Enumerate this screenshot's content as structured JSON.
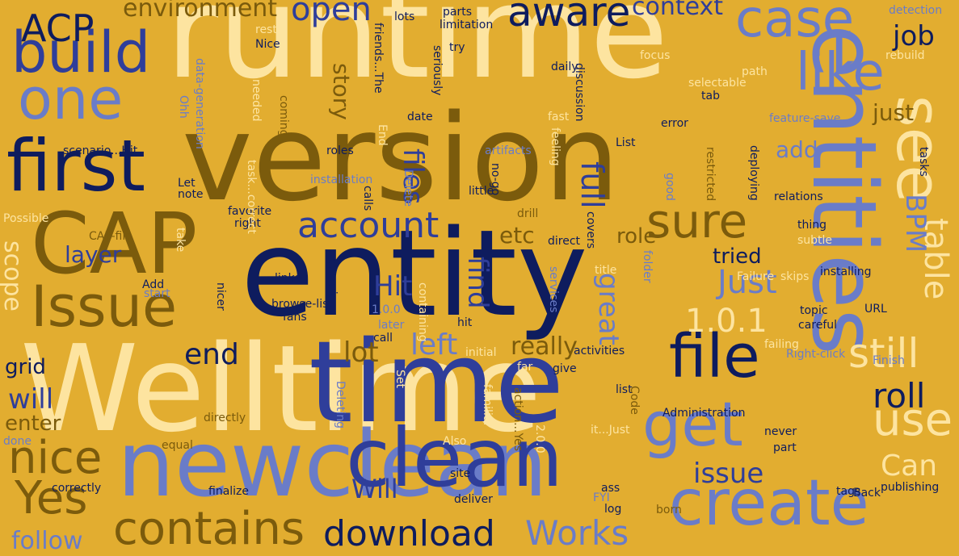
{
  "palette": {
    "background": "#E2AD30",
    "navy": "#0E1C5E",
    "blue": "#2F3E9A",
    "periwinkle": "#6A7CC8",
    "cream": "#FDE4A0",
    "olive": "#7B5B0C"
  },
  "words": [
    {
      "text": "runtime",
      "color": "cream"
    },
    {
      "text": "version",
      "color": "olive"
    },
    {
      "text": "entity",
      "color": "navy"
    },
    {
      "text": "Welltime",
      "color": "cream"
    },
    {
      "text": "time",
      "color": "blue"
    },
    {
      "text": "newclean",
      "color": "periwinkle"
    },
    {
      "text": "clean",
      "color": "blue"
    },
    {
      "text": "entities",
      "color": "periwinkle"
    },
    {
      "text": "CAP",
      "color": "olive"
    },
    {
      "text": "first",
      "color": "navy"
    },
    {
      "text": "build",
      "color": "blue"
    },
    {
      "text": "one",
      "color": "periwinkle"
    },
    {
      "text": "Issue",
      "color": "olive"
    },
    {
      "text": "create",
      "color": "periwinkle"
    },
    {
      "text": "see",
      "color": "cream"
    },
    {
      "text": "case",
      "color": "periwinkle"
    },
    {
      "text": "like",
      "color": "periwinkle"
    },
    {
      "text": "file",
      "color": "navy"
    },
    {
      "text": "get",
      "color": "periwinkle"
    },
    {
      "text": "sure",
      "color": "olive"
    },
    {
      "text": "aware",
      "color": "navy"
    },
    {
      "text": "contains",
      "color": "olive"
    },
    {
      "text": "download",
      "color": "navy"
    },
    {
      "text": "Yes",
      "color": "olive"
    },
    {
      "text": "nice",
      "color": "olive"
    },
    {
      "text": "use",
      "color": "cream"
    },
    {
      "text": "still",
      "color": "cream"
    },
    {
      "text": "account",
      "color": "blue"
    },
    {
      "text": "open",
      "color": "blue"
    },
    {
      "text": "ACP",
      "color": "navy"
    },
    {
      "text": "context",
      "color": "blue"
    },
    {
      "text": "environment",
      "color": "olive"
    },
    {
      "text": "job",
      "color": "navy"
    },
    {
      "text": "story",
      "color": "olive"
    },
    {
      "text": "files",
      "color": "blue"
    },
    {
      "text": "left",
      "color": "periwinkle"
    },
    {
      "text": "lot",
      "color": "olive"
    },
    {
      "text": "really",
      "color": "olive"
    },
    {
      "text": "end",
      "color": "navy"
    },
    {
      "text": "will",
      "color": "blue"
    },
    {
      "text": "grid",
      "color": "navy"
    },
    {
      "text": "enter",
      "color": "olive"
    },
    {
      "text": "follow",
      "color": "periwinkle"
    },
    {
      "text": "Works",
      "color": "periwinkle"
    },
    {
      "text": "Will",
      "color": "blue"
    },
    {
      "text": "issue",
      "color": "blue"
    },
    {
      "text": "Can",
      "color": "cream"
    },
    {
      "text": "roll",
      "color": "navy"
    },
    {
      "text": "table",
      "color": "cream"
    },
    {
      "text": "BPM",
      "color": "periwinkle"
    },
    {
      "text": "full",
      "color": "blue"
    },
    {
      "text": "Just",
      "color": "periwinkle"
    },
    {
      "text": "just",
      "color": "olive"
    },
    {
      "text": "add",
      "color": "periwinkle"
    },
    {
      "text": "etc",
      "color": "olive"
    },
    {
      "text": "find",
      "color": "blue"
    },
    {
      "text": "great",
      "color": "periwinkle"
    },
    {
      "text": "Hit",
      "color": "blue"
    },
    {
      "text": "layer",
      "color": "blue"
    },
    {
      "text": "scope",
      "color": "cream"
    },
    {
      "text": "role",
      "color": "olive"
    },
    {
      "text": "tried",
      "color": "navy"
    },
    {
      "text": "1.0.1",
      "color": "cream"
    },
    {
      "text": "Failure",
      "color": "cream"
    },
    {
      "text": "installing",
      "color": "navy"
    },
    {
      "text": "skips",
      "color": "cream"
    },
    {
      "text": "topic",
      "color": "navy"
    },
    {
      "text": "careful",
      "color": "navy"
    },
    {
      "text": "URL",
      "color": "navy"
    },
    {
      "text": "Right-click",
      "color": "periwinkle"
    },
    {
      "text": "Finish",
      "color": "periwinkle"
    },
    {
      "text": "failing",
      "color": "cream"
    },
    {
      "text": "activities",
      "color": "navy"
    },
    {
      "text": "list",
      "color": "navy"
    },
    {
      "text": "Code",
      "color": "olive"
    },
    {
      "text": "Administration",
      "color": "navy"
    },
    {
      "text": "it...Just",
      "color": "cream"
    },
    {
      "text": "2.0.0",
      "color": "cream"
    },
    {
      "text": "part",
      "color": "navy"
    },
    {
      "text": "never",
      "color": "navy"
    },
    {
      "text": "tags",
      "color": "navy"
    },
    {
      "text": "publishing",
      "color": "navy"
    },
    {
      "text": "Back",
      "color": "navy"
    },
    {
      "text": "born",
      "color": "olive"
    },
    {
      "text": "ass",
      "color": "navy"
    },
    {
      "text": "FYI",
      "color": "periwinkle"
    },
    {
      "text": "log",
      "color": "navy"
    },
    {
      "text": "deliver",
      "color": "navy"
    },
    {
      "text": "site",
      "color": "navy"
    },
    {
      "text": "Also",
      "color": "cream"
    },
    {
      "text": "finalize",
      "color": "navy"
    },
    {
      "text": "correctly",
      "color": "navy"
    },
    {
      "text": "done",
      "color": "periwinkle"
    },
    {
      "text": "equal",
      "color": "olive"
    },
    {
      "text": "directly",
      "color": "olive"
    },
    {
      "text": "action...Yes",
      "color": "olive"
    },
    {
      "text": "familiar",
      "color": "cream"
    },
    {
      "text": "Deleting",
      "color": "periwinkle"
    },
    {
      "text": "Set",
      "color": "cream"
    },
    {
      "text": "far",
      "color": "cream"
    },
    {
      "text": "initial",
      "color": "cream"
    },
    {
      "text": "give",
      "color": "navy"
    },
    {
      "text": "hit",
      "color": "navy"
    },
    {
      "text": "call",
      "color": "navy"
    },
    {
      "text": "later",
      "color": "periwinkle"
    },
    {
      "text": "1.0.0",
      "color": "periwinkle"
    },
    {
      "text": "fans",
      "color": "navy"
    },
    {
      "text": "browse-list",
      "color": "navy"
    },
    {
      "text": "links",
      "color": "navy"
    },
    {
      "text": "nicer",
      "color": "navy"
    },
    {
      "text": "generic",
      "color": "navy"
    },
    {
      "text": "Add",
      "color": "navy"
    },
    {
      "text": "start",
      "color": "periwinkle"
    },
    {
      "text": "CAP-file",
      "color": "olive"
    },
    {
      "text": "right",
      "color": "navy"
    },
    {
      "text": "favorite",
      "color": "navy"
    },
    {
      "text": "take",
      "color": "cream"
    },
    {
      "text": "Possible",
      "color": "cream"
    },
    {
      "text": "note",
      "color": "navy"
    },
    {
      "text": "Let",
      "color": "navy"
    },
    {
      "text": "scenario...Hit",
      "color": "navy"
    },
    {
      "text": "Ohh",
      "color": "periwinkle"
    },
    {
      "text": "data-generation",
      "color": "periwinkle"
    },
    {
      "text": "Nice",
      "color": "navy"
    },
    {
      "text": "rest",
      "color": "cream"
    },
    {
      "text": "needed",
      "color": "cream"
    },
    {
      "text": "coming",
      "color": "olive"
    },
    {
      "text": "friends...The",
      "color": "navy"
    },
    {
      "text": "lots",
      "color": "navy"
    },
    {
      "text": "parts",
      "color": "navy"
    },
    {
      "text": "limitation",
      "color": "navy"
    },
    {
      "text": "try",
      "color": "navy"
    },
    {
      "text": "seriously",
      "color": "navy"
    },
    {
      "text": "date",
      "color": "navy"
    },
    {
      "text": "roles",
      "color": "navy"
    },
    {
      "text": "End",
      "color": "cream"
    },
    {
      "text": "task...correct",
      "color": "cream"
    },
    {
      "text": "installation",
      "color": "periwinkle"
    },
    {
      "text": "artifacts",
      "color": "periwinkle"
    },
    {
      "text": "Delete",
      "color": "periwinkle"
    },
    {
      "text": "calls",
      "color": "navy"
    },
    {
      "text": "no-go",
      "color": "navy"
    },
    {
      "text": "little",
      "color": "navy"
    },
    {
      "text": "containing",
      "color": "cream"
    },
    {
      "text": "drill",
      "color": "olive"
    },
    {
      "text": "direct",
      "color": "navy"
    },
    {
      "text": "services",
      "color": "periwinkle"
    },
    {
      "text": "title",
      "color": "cream"
    },
    {
      "text": "folder",
      "color": "periwinkle"
    },
    {
      "text": "restricted",
      "color": "olive"
    },
    {
      "text": "covers",
      "color": "navy"
    },
    {
      "text": "feeling",
      "color": "cream"
    },
    {
      "text": "List",
      "color": "navy"
    },
    {
      "text": "good",
      "color": "periwinkle"
    },
    {
      "text": "deploying",
      "color": "navy"
    },
    {
      "text": "relations",
      "color": "navy"
    },
    {
      "text": "thing",
      "color": "navy"
    },
    {
      "text": "subtle",
      "color": "cream"
    },
    {
      "text": "feature-save",
      "color": "periwinkle"
    },
    {
      "text": "error",
      "color": "navy"
    },
    {
      "text": "tab",
      "color": "navy"
    },
    {
      "text": "selectable",
      "color": "cream"
    },
    {
      "text": "path",
      "color": "cream"
    },
    {
      "text": "tasks",
      "color": "navy"
    },
    {
      "text": "rebuild",
      "color": "cream"
    },
    {
      "text": "detection",
      "color": "periwinkle"
    },
    {
      "text": "focus",
      "color": "cream"
    },
    {
      "text": "discussion",
      "color": "navy"
    },
    {
      "text": "daily",
      "color": "navy"
    },
    {
      "text": "fast",
      "color": "cream"
    }
  ]
}
